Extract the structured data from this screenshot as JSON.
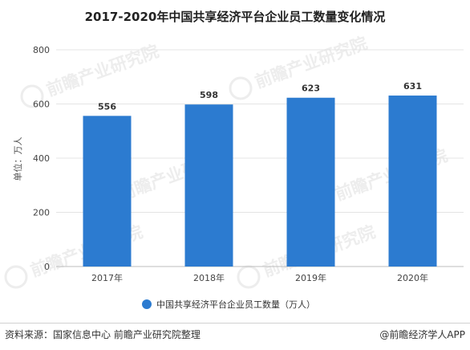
{
  "chart_data": {
    "type": "bar",
    "title": "2017-2020年中国共享经济平台企业员工数量变化情况",
    "ylabel": "单位：万人",
    "xlabel": "",
    "categories": [
      "2017年",
      "2018年",
      "2019年",
      "2020年"
    ],
    "series": [
      {
        "name": "中国共享经济平台企业员工数量（万人）",
        "values": [
          556,
          598,
          623,
          631
        ],
        "color": "#2c7bd0"
      }
    ],
    "ylim": [
      0,
      800
    ],
    "yticks": [
      "0",
      "200",
      "400",
      "600",
      "800"
    ],
    "grid": true,
    "legend": "bottom-center"
  },
  "footer": {
    "source": "资料来源：国家信息中心 前瞻产业研究院整理",
    "credit": "@前瞻经济学人APP"
  },
  "watermark": {
    "text": "前瞻产业研究院"
  }
}
